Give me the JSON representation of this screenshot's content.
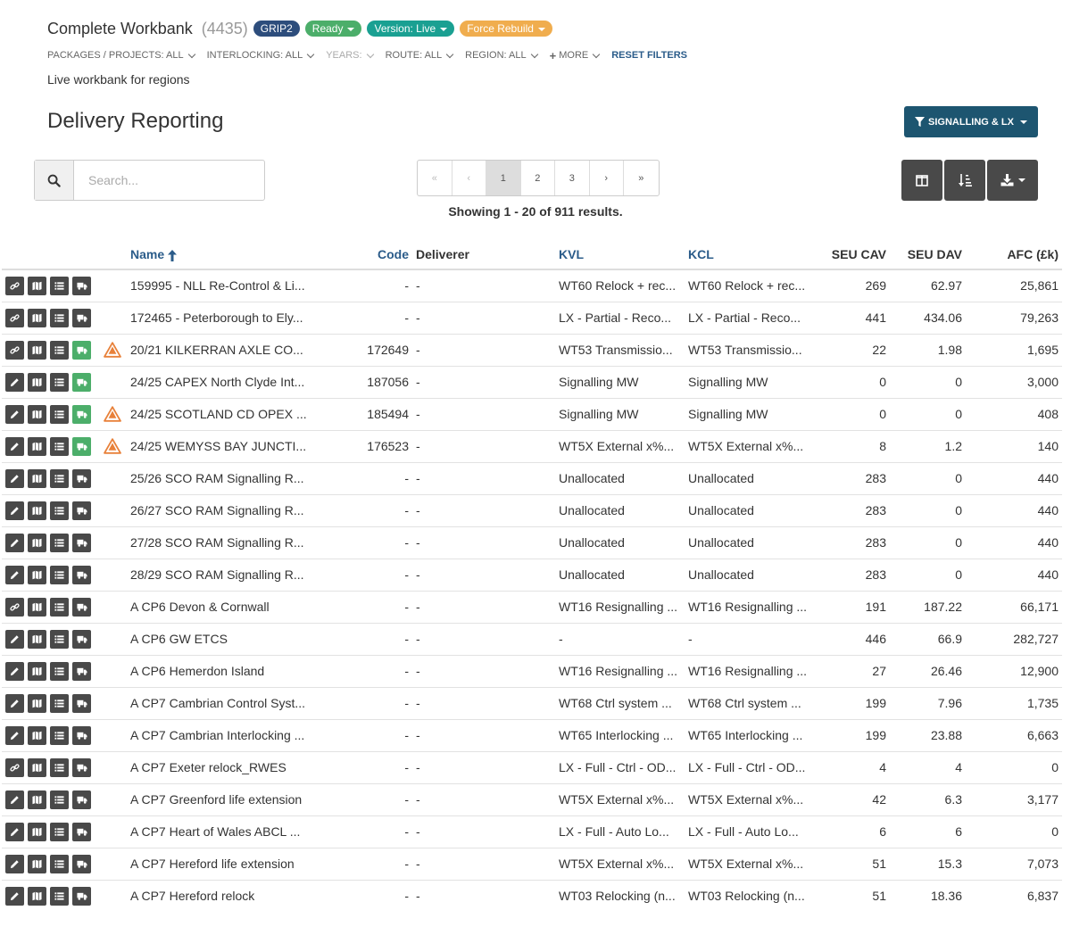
{
  "header": {
    "title": "Complete Workbank",
    "count": "(4435)",
    "badges": {
      "grip": "GRIP2",
      "ready": "Ready",
      "version": "Version: Live",
      "force": "Force Rebuild"
    }
  },
  "filters": {
    "packages": "PACKAGES / PROJECTS: ALL",
    "interlocking": "INTERLOCKING: ALL",
    "years": "YEARS:",
    "route": "ROUTE: ALL",
    "region": "REGION: ALL",
    "more": "MORE",
    "reset": "RESET FILTERS"
  },
  "subtitle": "Live workbank for regions",
  "page_title": "Delivery Reporting",
  "signalling_button": "SIGNALLING & LX",
  "search": {
    "placeholder": "Search..."
  },
  "pagination": {
    "first": "«",
    "prev": "‹",
    "pages": [
      "1",
      "2",
      "3"
    ],
    "next": "›",
    "last": "»",
    "active": "1"
  },
  "showing": "Showing 1 - 20 of 911 results.",
  "table": {
    "columns": {
      "name": "Name",
      "code": "Code",
      "deliverer": "Deliverer",
      "kvl": "KVL",
      "kcl": "KCL",
      "seu_cav": "SEU CAV",
      "seu_dav": "SEU DAV",
      "afc": "AFC (£k)"
    },
    "rows": [
      {
        "edit": "link",
        "green": false,
        "warn": false,
        "name": "159995 - NLL Re-Control & Li...",
        "code": "-",
        "deliverer": "-",
        "kvl": "WT60 Relock + rec...",
        "kcl": "WT60 Relock + rec...",
        "seu_cav": "269",
        "seu_dav": "62.97",
        "afc": "25,861"
      },
      {
        "edit": "link",
        "green": false,
        "warn": false,
        "name": "172465 - Peterborough to Ely...",
        "code": "-",
        "deliverer": "-",
        "kvl": "LX - Partial - Reco...",
        "kcl": "LX - Partial - Reco...",
        "seu_cav": "441",
        "seu_dav": "434.06",
        "afc": "79,263"
      },
      {
        "edit": "link",
        "green": true,
        "warn": true,
        "name": "20/21 KILKERRAN AXLE CO...",
        "code": "172649",
        "deliverer": "-",
        "kvl": "WT53 Transmissio...",
        "kcl": "WT53 Transmissio...",
        "seu_cav": "22",
        "seu_dav": "1.98",
        "afc": "1,695"
      },
      {
        "edit": "pencil",
        "green": true,
        "warn": false,
        "name": "24/25 CAPEX North Clyde Int...",
        "code": "187056",
        "deliverer": "-",
        "kvl": "Signalling MW",
        "kcl": "Signalling MW",
        "seu_cav": "0",
        "seu_dav": "0",
        "afc": "3,000"
      },
      {
        "edit": "pencil",
        "green": true,
        "warn": true,
        "name": "24/25 SCOTLAND CD OPEX ...",
        "code": "185494",
        "deliverer": "-",
        "kvl": "Signalling MW",
        "kcl": "Signalling MW",
        "seu_cav": "0",
        "seu_dav": "0",
        "afc": "408"
      },
      {
        "edit": "pencil",
        "green": true,
        "warn": true,
        "name": "24/25 WEMYSS BAY JUNCTI...",
        "code": "176523",
        "deliverer": "-",
        "kvl": "WT5X External x%...",
        "kcl": "WT5X External x%...",
        "seu_cav": "8",
        "seu_dav": "1.2",
        "afc": "140"
      },
      {
        "edit": "pencil",
        "green": false,
        "warn": false,
        "name": "25/26 SCO RAM Signalling R...",
        "code": "-",
        "deliverer": "-",
        "kvl": "Unallocated",
        "kcl": "Unallocated",
        "seu_cav": "283",
        "seu_dav": "0",
        "afc": "440"
      },
      {
        "edit": "pencil",
        "green": false,
        "warn": false,
        "name": "26/27 SCO RAM Signalling R...",
        "code": "-",
        "deliverer": "-",
        "kvl": "Unallocated",
        "kcl": "Unallocated",
        "seu_cav": "283",
        "seu_dav": "0",
        "afc": "440"
      },
      {
        "edit": "pencil",
        "green": false,
        "warn": false,
        "name": "27/28 SCO RAM Signalling R...",
        "code": "-",
        "deliverer": "-",
        "kvl": "Unallocated",
        "kcl": "Unallocated",
        "seu_cav": "283",
        "seu_dav": "0",
        "afc": "440"
      },
      {
        "edit": "pencil",
        "green": false,
        "warn": false,
        "name": "28/29 SCO RAM Signalling R...",
        "code": "-",
        "deliverer": "-",
        "kvl": "Unallocated",
        "kcl": "Unallocated",
        "seu_cav": "283",
        "seu_dav": "0",
        "afc": "440"
      },
      {
        "edit": "link",
        "green": false,
        "warn": false,
        "name": "A CP6 Devon & Cornwall",
        "code": "-",
        "deliverer": "-",
        "kvl": "WT16 Resignalling ...",
        "kcl": "WT16 Resignalling ...",
        "seu_cav": "191",
        "seu_dav": "187.22",
        "afc": "66,171"
      },
      {
        "edit": "pencil",
        "green": false,
        "warn": false,
        "name": "A CP6 GW ETCS",
        "code": "-",
        "deliverer": "-",
        "kvl": "-",
        "kcl": "-",
        "seu_cav": "446",
        "seu_dav": "66.9",
        "afc": "282,727"
      },
      {
        "edit": "pencil",
        "green": false,
        "warn": false,
        "name": "A CP6 Hemerdon Island",
        "code": "-",
        "deliverer": "-",
        "kvl": "WT16 Resignalling ...",
        "kcl": "WT16 Resignalling ...",
        "seu_cav": "27",
        "seu_dav": "26.46",
        "afc": "12,900"
      },
      {
        "edit": "pencil",
        "green": false,
        "warn": false,
        "name": "A CP7 Cambrian Control Syst...",
        "code": "-",
        "deliverer": "-",
        "kvl": "WT68 Ctrl system ...",
        "kcl": "WT68 Ctrl system ...",
        "seu_cav": "199",
        "seu_dav": "7.96",
        "afc": "1,735"
      },
      {
        "edit": "pencil",
        "green": false,
        "warn": false,
        "name": "A CP7 Cambrian Interlocking ...",
        "code": "-",
        "deliverer": "-",
        "kvl": "WT65 Interlocking ...",
        "kcl": "WT65 Interlocking ...",
        "seu_cav": "199",
        "seu_dav": "23.88",
        "afc": "6,663"
      },
      {
        "edit": "link",
        "green": false,
        "warn": false,
        "name": "A CP7 Exeter relock_RWES",
        "code": "-",
        "deliverer": "-",
        "kvl": "LX - Full - Ctrl - OD...",
        "kcl": "LX - Full - Ctrl - OD...",
        "seu_cav": "4",
        "seu_dav": "4",
        "afc": "0"
      },
      {
        "edit": "pencil",
        "green": false,
        "warn": false,
        "name": "A CP7 Greenford life extension",
        "code": "-",
        "deliverer": "-",
        "kvl": "WT5X External x%...",
        "kcl": "WT5X External x%...",
        "seu_cav": "42",
        "seu_dav": "6.3",
        "afc": "3,177"
      },
      {
        "edit": "pencil",
        "green": false,
        "warn": false,
        "name": "A CP7 Heart of Wales ABCL ...",
        "code": "-",
        "deliverer": "-",
        "kvl": "LX - Full - Auto Lo...",
        "kcl": "LX - Full - Auto Lo...",
        "seu_cav": "6",
        "seu_dav": "6",
        "afc": "0"
      },
      {
        "edit": "pencil",
        "green": false,
        "warn": false,
        "name": "A CP7 Hereford life extension",
        "code": "-",
        "deliverer": "-",
        "kvl": "WT5X External x%...",
        "kcl": "WT5X External x%...",
        "seu_cav": "51",
        "seu_dav": "15.3",
        "afc": "7,073"
      },
      {
        "edit": "pencil",
        "green": false,
        "warn": false,
        "name": "A CP7 Hereford relock",
        "code": "-",
        "deliverer": "-",
        "kvl": "WT03 Relocking (n...",
        "kcl": "WT03 Relocking (n...",
        "seu_cav": "51",
        "seu_dav": "18.36",
        "afc": "6,837"
      }
    ]
  }
}
